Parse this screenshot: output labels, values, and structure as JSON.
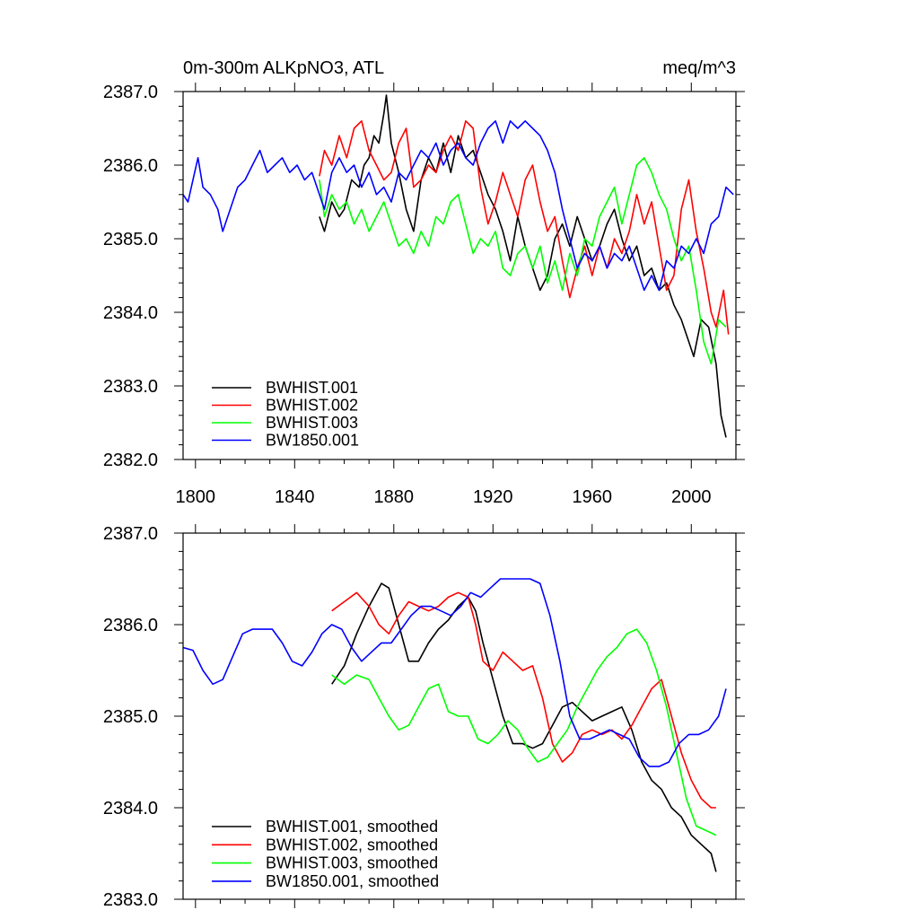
{
  "figure": {
    "title_left": "0m-300m ALKpNO3, ATL",
    "title_right": "meq/m^3"
  },
  "chart_data": [
    {
      "type": "line",
      "title": "0m-300m ALKpNO3, ATL",
      "units": "meq/m^3",
      "xlim": [
        1795,
        2018
      ],
      "ylim": [
        2382.0,
        2387.0
      ],
      "x_ticks": [
        1800,
        1840,
        1880,
        1920,
        1960,
        2000
      ],
      "x_tick_labels": [
        "1800",
        "1840",
        "1880",
        "1920",
        "1960",
        "2000"
      ],
      "y_ticks": [
        2382.0,
        2383.0,
        2384.0,
        2385.0,
        2386.0,
        2387.0
      ],
      "y_tick_labels": [
        "2382.0",
        "2383.0",
        "2384.0",
        "2385.0",
        "2386.0",
        "2387.0"
      ],
      "legend_position": "bottom-left",
      "series": [
        {
          "name": "BWHIST.001",
          "color": "#000000",
          "x": [
            1850,
            1852,
            1855,
            1858,
            1860,
            1863,
            1866,
            1868,
            1870,
            1872,
            1874,
            1876,
            1877,
            1879,
            1882,
            1885,
            1888,
            1891,
            1894,
            1897,
            1900,
            1903,
            1906,
            1909,
            1912,
            1915,
            1918,
            1921,
            1924,
            1927,
            1930,
            1933,
            1936,
            1939,
            1942,
            1945,
            1948,
            1951,
            1954,
            1957,
            1960,
            1963,
            1966,
            1969,
            1972,
            1975,
            1978,
            1981,
            1984,
            1987,
            1990,
            1993,
            1996,
            1999,
            2001,
            2004,
            2007,
            2010,
            2012,
            2014
          ],
          "y": [
            2385.3,
            2385.1,
            2385.5,
            2385.3,
            2385.4,
            2385.8,
            2385.7,
            2386.0,
            2386.1,
            2386.4,
            2386.3,
            2386.7,
            2386.95,
            2386.3,
            2385.9,
            2385.4,
            2385.1,
            2385.8,
            2386.1,
            2385.9,
            2386.3,
            2385.9,
            2386.4,
            2386.1,
            2386.2,
            2385.9,
            2385.6,
            2385.4,
            2385.1,
            2384.7,
            2385.3,
            2384.9,
            2384.6,
            2384.3,
            2384.5,
            2385.0,
            2385.2,
            2384.9,
            2385.3,
            2385.0,
            2384.7,
            2384.9,
            2385.2,
            2385.4,
            2385.0,
            2384.7,
            2384.9,
            2384.5,
            2384.6,
            2384.3,
            2384.4,
            2384.1,
            2383.9,
            2383.6,
            2383.4,
            2383.9,
            2383.8,
            2383.3,
            2382.6,
            2382.3
          ]
        },
        {
          "name": "BWHIST.002",
          "color": "#ff0000",
          "x": [
            1850,
            1852,
            1855,
            1858,
            1861,
            1864,
            1867,
            1870,
            1873,
            1876,
            1879,
            1882,
            1885,
            1888,
            1891,
            1894,
            1897,
            1900,
            1903,
            1906,
            1909,
            1912,
            1915,
            1918,
            1921,
            1924,
            1927,
            1930,
            1933,
            1936,
            1939,
            1942,
            1945,
            1948,
            1951,
            1954,
            1957,
            1960,
            1963,
            1966,
            1969,
            1972,
            1975,
            1978,
            1981,
            1984,
            1987,
            1990,
            1993,
            1996,
            1999,
            2002,
            2005,
            2008,
            2010,
            2013,
            2015
          ],
          "y": [
            2385.85,
            2386.2,
            2386.0,
            2386.4,
            2386.1,
            2386.5,
            2386.6,
            2386.2,
            2386.0,
            2385.8,
            2385.9,
            2386.3,
            2386.5,
            2385.7,
            2385.8,
            2386.0,
            2385.9,
            2386.2,
            2386.4,
            2386.2,
            2386.6,
            2386.5,
            2385.7,
            2385.2,
            2385.5,
            2385.9,
            2385.6,
            2385.3,
            2385.8,
            2386.0,
            2385.5,
            2385.1,
            2385.3,
            2384.7,
            2384.2,
            2384.6,
            2384.9,
            2384.5,
            2384.9,
            2384.6,
            2385.0,
            2384.8,
            2385.1,
            2385.6,
            2385.2,
            2385.5,
            2384.9,
            2384.3,
            2384.5,
            2385.4,
            2385.8,
            2385.1,
            2384.6,
            2384.0,
            2383.8,
            2384.3,
            2383.7
          ]
        },
        {
          "name": "BWHIST.003",
          "color": "#00ff00",
          "x": [
            1850,
            1852,
            1855,
            1858,
            1861,
            1864,
            1867,
            1870,
            1873,
            1876,
            1879,
            1882,
            1885,
            1888,
            1891,
            1894,
            1897,
            1900,
            1903,
            1906,
            1909,
            1912,
            1915,
            1918,
            1921,
            1924,
            1927,
            1930,
            1933,
            1936,
            1939,
            1942,
            1945,
            1948,
            1951,
            1954,
            1957,
            1960,
            1963,
            1966,
            1969,
            1972,
            1975,
            1978,
            1981,
            1984,
            1987,
            1990,
            1993,
            1996,
            1999,
            2002,
            2005,
            2008,
            2011,
            2014
          ],
          "y": [
            2385.8,
            2385.3,
            2385.6,
            2385.4,
            2385.5,
            2385.2,
            2385.4,
            2385.1,
            2385.3,
            2385.5,
            2385.2,
            2384.9,
            2385.0,
            2384.8,
            2385.1,
            2384.9,
            2385.3,
            2385.2,
            2385.5,
            2385.6,
            2385.2,
            2384.8,
            2385.0,
            2384.9,
            2385.1,
            2384.6,
            2384.5,
            2384.8,
            2384.9,
            2384.6,
            2384.9,
            2384.4,
            2384.7,
            2384.3,
            2384.8,
            2384.5,
            2385.0,
            2384.9,
            2385.3,
            2385.5,
            2385.7,
            2385.2,
            2385.6,
            2386.0,
            2386.1,
            2385.9,
            2385.6,
            2385.4,
            2385.0,
            2384.7,
            2384.9,
            2384.3,
            2383.6,
            2383.3,
            2383.9,
            2383.8
          ]
        },
        {
          "name": "BW1850.001",
          "color": "#0000ff",
          "x": [
            1795,
            1797,
            1799,
            1801,
            1803,
            1806,
            1809,
            1811,
            1814,
            1817,
            1820,
            1823,
            1826,
            1829,
            1832,
            1835,
            1838,
            1841,
            1844,
            1847,
            1849,
            1852,
            1855,
            1858,
            1861,
            1864,
            1867,
            1870,
            1873,
            1876,
            1879,
            1882,
            1885,
            1888,
            1891,
            1894,
            1897,
            1900,
            1903,
            1906,
            1909,
            1912,
            1915,
            1918,
            1921,
            1924,
            1927,
            1930,
            1933,
            1936,
            1939,
            1942,
            1945,
            1948,
            1951,
            1954,
            1957,
            1960,
            1963,
            1966,
            1969,
            1972,
            1975,
            1978,
            1981,
            1984,
            1987,
            1990,
            1993,
            1996,
            1999,
            2002,
            2005,
            2008,
            2011,
            2014,
            2017
          ],
          "y": [
            2385.6,
            2385.5,
            2385.8,
            2386.1,
            2385.7,
            2385.6,
            2385.4,
            2385.1,
            2385.4,
            2385.7,
            2385.8,
            2386.0,
            2386.2,
            2385.9,
            2386.0,
            2386.1,
            2385.9,
            2386.0,
            2385.8,
            2385.9,
            2385.7,
            2385.4,
            2385.9,
            2386.1,
            2385.9,
            2386.0,
            2385.7,
            2385.9,
            2385.6,
            2385.7,
            2385.5,
            2385.9,
            2385.8,
            2386.0,
            2386.2,
            2386.1,
            2386.3,
            2386.0,
            2386.2,
            2386.3,
            2386.1,
            2386.0,
            2386.3,
            2386.5,
            2386.6,
            2386.3,
            2386.6,
            2386.5,
            2386.6,
            2386.5,
            2386.4,
            2386.2,
            2385.9,
            2385.4,
            2385.0,
            2384.6,
            2384.8,
            2384.7,
            2384.9,
            2384.6,
            2384.8,
            2384.7,
            2384.9,
            2384.6,
            2384.3,
            2384.5,
            2384.3,
            2384.7,
            2384.6,
            2384.9,
            2384.8,
            2385.0,
            2384.8,
            2385.2,
            2385.3,
            2385.7,
            2385.6
          ]
        }
      ]
    },
    {
      "type": "line",
      "title": "",
      "xlim": [
        1795,
        2018
      ],
      "ylim": [
        2383.0,
        2387.0
      ],
      "x_ticks": [
        1800,
        1840,
        1880,
        1920,
        1960,
        2000
      ],
      "x_tick_labels": [],
      "y_ticks": [
        2383.0,
        2384.0,
        2385.0,
        2386.0,
        2387.0
      ],
      "y_tick_labels": [
        "2383.0",
        "2384.0",
        "2385.0",
        "2386.0",
        "2387.0"
      ],
      "legend_position": "bottom-left",
      "series": [
        {
          "name": "BWHIST.001, smoothed",
          "color": "#000000",
          "x": [
            1855,
            1860,
            1865,
            1870,
            1875,
            1878,
            1882,
            1886,
            1890,
            1894,
            1898,
            1902,
            1906,
            1910,
            1913,
            1916,
            1920,
            1924,
            1928,
            1932,
            1936,
            1940,
            1944,
            1948,
            1952,
            1956,
            1960,
            1964,
            1968,
            1972,
            1976,
            1980,
            1984,
            1988,
            1992,
            1996,
            2000,
            2004,
            2008,
            2010
          ],
          "y": [
            2385.35,
            2385.55,
            2385.9,
            2386.2,
            2386.45,
            2386.4,
            2386.0,
            2385.6,
            2385.6,
            2385.8,
            2385.95,
            2386.05,
            2386.2,
            2386.3,
            2386.15,
            2385.8,
            2385.4,
            2385.0,
            2384.7,
            2384.7,
            2384.65,
            2384.7,
            2384.9,
            2385.1,
            2385.15,
            2385.05,
            2384.95,
            2385.0,
            2385.05,
            2385.1,
            2384.85,
            2384.5,
            2384.3,
            2384.2,
            2384.0,
            2383.9,
            2383.7,
            2383.6,
            2383.5,
            2383.3
          ]
        },
        {
          "name": "BWHIST.002, smoothed",
          "color": "#ff0000",
          "x": [
            1855,
            1860,
            1865,
            1870,
            1874,
            1878,
            1882,
            1886,
            1890,
            1894,
            1898,
            1902,
            1906,
            1910,
            1913,
            1916,
            1920,
            1924,
            1928,
            1932,
            1936,
            1940,
            1944,
            1948,
            1952,
            1956,
            1960,
            1964,
            1968,
            1972,
            1976,
            1980,
            1984,
            1988,
            1992,
            1996,
            2000,
            2004,
            2008,
            2010
          ],
          "y": [
            2386.15,
            2386.25,
            2386.35,
            2386.2,
            2386.0,
            2385.9,
            2386.1,
            2386.25,
            2386.2,
            2386.15,
            2386.2,
            2386.3,
            2386.35,
            2386.3,
            2386.0,
            2385.6,
            2385.5,
            2385.7,
            2385.6,
            2385.5,
            2385.55,
            2385.2,
            2384.7,
            2384.5,
            2384.6,
            2384.8,
            2384.85,
            2384.8,
            2384.85,
            2384.75,
            2384.9,
            2385.1,
            2385.3,
            2385.4,
            2385.0,
            2384.6,
            2384.3,
            2384.1,
            2384.0,
            2384.0
          ]
        },
        {
          "name": "BWHIST.003, smoothed",
          "color": "#00ff00",
          "x": [
            1855,
            1860,
            1865,
            1870,
            1874,
            1878,
            1882,
            1886,
            1890,
            1894,
            1898,
            1902,
            1906,
            1910,
            1914,
            1918,
            1922,
            1926,
            1930,
            1934,
            1938,
            1942,
            1946,
            1950,
            1954,
            1958,
            1962,
            1966,
            1970,
            1974,
            1978,
            1982,
            1986,
            1990,
            1994,
            1998,
            2002,
            2006,
            2010
          ],
          "y": [
            2385.45,
            2385.35,
            2385.45,
            2385.4,
            2385.2,
            2385.0,
            2384.85,
            2384.9,
            2385.1,
            2385.3,
            2385.35,
            2385.05,
            2385.0,
            2385.0,
            2384.75,
            2384.7,
            2384.8,
            2384.95,
            2384.85,
            2384.65,
            2384.5,
            2384.55,
            2384.7,
            2384.85,
            2385.1,
            2385.3,
            2385.5,
            2385.65,
            2385.75,
            2385.9,
            2385.95,
            2385.8,
            2385.5,
            2385.1,
            2384.6,
            2384.1,
            2383.8,
            2383.75,
            2383.7
          ]
        },
        {
          "name": "BW1850.001, smoothed",
          "color": "#0000ff",
          "x": [
            1795,
            1799,
            1803,
            1807,
            1811,
            1815,
            1819,
            1823,
            1827,
            1831,
            1835,
            1839,
            1843,
            1847,
            1851,
            1855,
            1859,
            1863,
            1867,
            1871,
            1875,
            1879,
            1883,
            1887,
            1891,
            1895,
            1899,
            1903,
            1907,
            1911,
            1915,
            1919,
            1923,
            1927,
            1931,
            1935,
            1939,
            1943,
            1947,
            1951,
            1955,
            1959,
            1963,
            1967,
            1971,
            1975,
            1979,
            1983,
            1987,
            1991,
            1995,
            1999,
            2003,
            2007,
            2011,
            2014
          ],
          "y": [
            2385.75,
            2385.72,
            2385.5,
            2385.35,
            2385.4,
            2385.65,
            2385.9,
            2385.95,
            2385.95,
            2385.95,
            2385.8,
            2385.6,
            2385.55,
            2385.7,
            2385.9,
            2386.0,
            2385.95,
            2385.75,
            2385.6,
            2385.7,
            2385.8,
            2385.8,
            2385.95,
            2386.1,
            2386.2,
            2386.2,
            2386.15,
            2386.1,
            2386.2,
            2386.35,
            2386.3,
            2386.4,
            2386.5,
            2386.5,
            2386.5,
            2386.5,
            2386.45,
            2386.1,
            2385.6,
            2385.0,
            2384.75,
            2384.75,
            2384.8,
            2384.85,
            2384.8,
            2384.75,
            2384.55,
            2384.45,
            2384.45,
            2384.5,
            2384.7,
            2384.8,
            2384.8,
            2384.85,
            2385.0,
            2385.3
          ]
        }
      ]
    }
  ]
}
